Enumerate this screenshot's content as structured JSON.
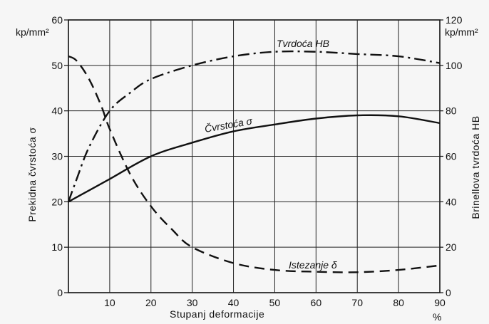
{
  "chart_data": {
    "type": "line",
    "xlabel": "Stupanj deformacije",
    "x_unit": "%",
    "xlim": [
      0,
      90
    ],
    "x_ticks": [
      10,
      20,
      30,
      40,
      50,
      60,
      70,
      80,
      90
    ],
    "ylabel_left": "Prekidna čvrstoća σ",
    "y_unit_left": "kp/mm²",
    "ylim_left": [
      0,
      60
    ],
    "y_ticks_left": [
      0,
      10,
      20,
      30,
      40,
      50,
      60
    ],
    "ylabel_right": "Brinellova tvrdoća HB",
    "y_unit_right": "kp/mm²",
    "ylim_right": [
      0,
      120
    ],
    "y_ticks_right": [
      0,
      20,
      40,
      60,
      80,
      100,
      120
    ],
    "grid": true,
    "series": [
      {
        "name": "Tvrdoća HB",
        "axis": "right",
        "style": "dash-dot",
        "x": [
          0,
          2,
          5,
          10,
          15,
          20,
          30,
          40,
          50,
          60,
          70,
          80,
          90
        ],
        "y": [
          40,
          50,
          64,
          80,
          88,
          94,
          100,
          104,
          106,
          106,
          105,
          104,
          101
        ]
      },
      {
        "name": "Čvrstoća σ",
        "axis": "left",
        "style": "solid",
        "x": [
          0,
          5,
          10,
          20,
          30,
          40,
          50,
          60,
          70,
          80,
          90
        ],
        "y": [
          20,
          22.5,
          25,
          30,
          33,
          35.5,
          37,
          38.3,
          39,
          38.8,
          37.3
        ]
      },
      {
        "name": "Istezanje δ",
        "axis": "left",
        "style": "dashed",
        "x": [
          0,
          2,
          5,
          8,
          10,
          15,
          20,
          25,
          30,
          40,
          50,
          60,
          70,
          80,
          90
        ],
        "y": [
          52,
          51,
          47,
          41,
          36,
          26,
          19,
          14,
          10,
          6.5,
          5,
          4.6,
          4.5,
          5,
          6
        ]
      }
    ]
  }
}
